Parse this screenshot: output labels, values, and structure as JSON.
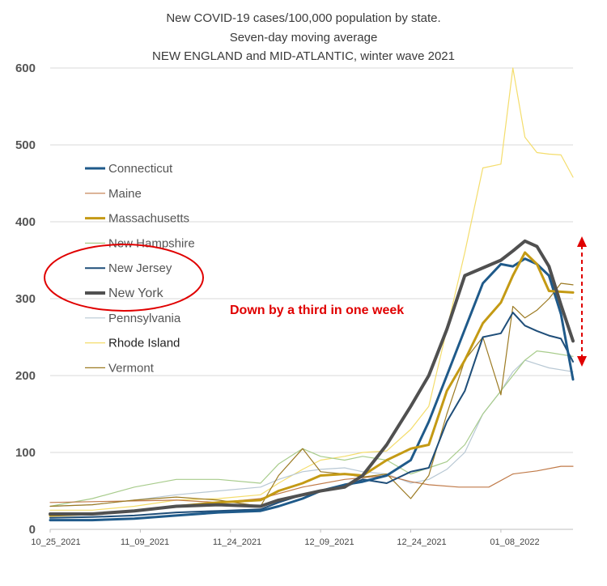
{
  "chart_data": {
    "type": "line",
    "title": [
      "New COVID-19 cases/100,000 population by state.",
      "Seven-day moving average",
      "NEW ENGLAND and MID-ATLANTIC, winter wave 2021"
    ],
    "xlabel": "",
    "ylabel": "",
    "ylim": [
      0,
      600
    ],
    "yticks": [
      0,
      100,
      200,
      300,
      400,
      500,
      600
    ],
    "x_range": [
      "2021-10-25",
      "2022-01-20"
    ],
    "xtick_labels": [
      "10_25_2021",
      "11_09_2021",
      "11_24_2021",
      "12_09_2021",
      "12_24_2021",
      "01_08_2022"
    ],
    "grid": "horizontal",
    "legend_position": "left-middle",
    "series": [
      {
        "name": "Connecticut",
        "color": "#1f5a8a",
        "points": [
          [
            "2021-10-25",
            12
          ],
          [
            "2021-11-01",
            12
          ],
          [
            "2021-11-08",
            14
          ],
          [
            "2021-11-15",
            18
          ],
          [
            "2021-11-22",
            22
          ],
          [
            "2021-11-29",
            24
          ],
          [
            "2021-12-02",
            30
          ],
          [
            "2021-12-06",
            40
          ],
          [
            "2021-12-09",
            50
          ],
          [
            "2021-12-13",
            58
          ],
          [
            "2021-12-16",
            62
          ],
          [
            "2021-12-20",
            70
          ],
          [
            "2021-12-24",
            90
          ],
          [
            "2021-12-27",
            140
          ],
          [
            "2021-12-30",
            200
          ],
          [
            "2022-01-02",
            260
          ],
          [
            "2022-01-05",
            320
          ],
          [
            "2022-01-08",
            345
          ],
          [
            "2022-01-10",
            342
          ],
          [
            "2022-01-12",
            352
          ],
          [
            "2022-01-14",
            345
          ],
          [
            "2022-01-16",
            330
          ],
          [
            "2022-01-18",
            280
          ],
          [
            "2022-01-20",
            195
          ]
        ]
      },
      {
        "name": "Maine",
        "color": "#c07a48",
        "points": [
          [
            "2021-10-25",
            35
          ],
          [
            "2021-11-01",
            36
          ],
          [
            "2021-11-08",
            37
          ],
          [
            "2021-11-15",
            38
          ],
          [
            "2021-11-22",
            35
          ],
          [
            "2021-11-29",
            40
          ],
          [
            "2021-12-06",
            55
          ],
          [
            "2021-12-13",
            65
          ],
          [
            "2021-12-20",
            70
          ],
          [
            "2021-12-24",
            62
          ],
          [
            "2021-12-27",
            58
          ],
          [
            "2022-01-01",
            55
          ],
          [
            "2022-01-06",
            55
          ],
          [
            "2022-01-10",
            72
          ],
          [
            "2022-01-14",
            76
          ],
          [
            "2022-01-18",
            82
          ],
          [
            "2022-01-20",
            82
          ]
        ]
      },
      {
        "name": "Massachusetts",
        "color": "#c49a14",
        "points": [
          [
            "2021-10-25",
            18
          ],
          [
            "2021-11-01",
            20
          ],
          [
            "2021-11-08",
            24
          ],
          [
            "2021-11-15",
            30
          ],
          [
            "2021-11-22",
            35
          ],
          [
            "2021-11-29",
            38
          ],
          [
            "2021-12-02",
            50
          ],
          [
            "2021-12-06",
            60
          ],
          [
            "2021-12-09",
            70
          ],
          [
            "2021-12-13",
            72
          ],
          [
            "2021-12-16",
            70
          ],
          [
            "2021-12-20",
            90
          ],
          [
            "2021-12-24",
            105
          ],
          [
            "2021-12-27",
            110
          ],
          [
            "2021-12-30",
            180
          ],
          [
            "2022-01-02",
            220
          ],
          [
            "2022-01-05",
            268
          ],
          [
            "2022-01-08",
            295
          ],
          [
            "2022-01-10",
            330
          ],
          [
            "2022-01-12",
            360
          ],
          [
            "2022-01-14",
            345
          ],
          [
            "2022-01-16",
            310
          ],
          [
            "2022-01-20",
            308
          ]
        ]
      },
      {
        "name": "New Hampshire",
        "color": "#a8cc8c",
        "points": [
          [
            "2021-10-25",
            30
          ],
          [
            "2021-11-01",
            40
          ],
          [
            "2021-11-08",
            55
          ],
          [
            "2021-11-15",
            65
          ],
          [
            "2021-11-22",
            65
          ],
          [
            "2021-11-29",
            60
          ],
          [
            "2021-12-02",
            85
          ],
          [
            "2021-12-06",
            105
          ],
          [
            "2021-12-09",
            95
          ],
          [
            "2021-12-13",
            90
          ],
          [
            "2021-12-16",
            95
          ],
          [
            "2021-12-20",
            90
          ],
          [
            "2021-12-24",
            72
          ],
          [
            "2021-12-27",
            80
          ],
          [
            "2021-12-30",
            88
          ],
          [
            "2022-01-02",
            110
          ],
          [
            "2022-01-05",
            150
          ],
          [
            "2022-01-08",
            180
          ],
          [
            "2022-01-10",
            200
          ],
          [
            "2022-01-12",
            220
          ],
          [
            "2022-01-14",
            232
          ],
          [
            "2022-01-16",
            230
          ],
          [
            "2022-01-20",
            225
          ]
        ]
      },
      {
        "name": "New Jersey",
        "color": "#1f4e79",
        "points": [
          [
            "2021-10-25",
            15
          ],
          [
            "2021-11-01",
            16
          ],
          [
            "2021-11-08",
            18
          ],
          [
            "2021-11-15",
            22
          ],
          [
            "2021-11-22",
            24
          ],
          [
            "2021-11-29",
            26
          ],
          [
            "2021-12-02",
            35
          ],
          [
            "2021-12-06",
            45
          ],
          [
            "2021-12-09",
            50
          ],
          [
            "2021-12-13",
            55
          ],
          [
            "2021-12-16",
            65
          ],
          [
            "2021-12-20",
            60
          ],
          [
            "2021-12-24",
            75
          ],
          [
            "2021-12-27",
            80
          ],
          [
            "2021-12-30",
            140
          ],
          [
            "2022-01-02",
            180
          ],
          [
            "2022-01-05",
            250
          ],
          [
            "2022-01-08",
            255
          ],
          [
            "2022-01-10",
            282
          ],
          [
            "2022-01-12",
            265
          ],
          [
            "2022-01-14",
            258
          ],
          [
            "2022-01-16",
            252
          ],
          [
            "2022-01-18",
            248
          ],
          [
            "2022-01-20",
            218
          ]
        ]
      },
      {
        "name": "New York",
        "color": "#505050",
        "points": [
          [
            "2021-10-25",
            20
          ],
          [
            "2021-11-01",
            20
          ],
          [
            "2021-11-08",
            24
          ],
          [
            "2021-11-15",
            30
          ],
          [
            "2021-11-22",
            32
          ],
          [
            "2021-11-29",
            30
          ],
          [
            "2021-12-02",
            38
          ],
          [
            "2021-12-06",
            45
          ],
          [
            "2021-12-09",
            50
          ],
          [
            "2021-12-13",
            55
          ],
          [
            "2021-12-16",
            70
          ],
          [
            "2021-12-20",
            110
          ],
          [
            "2021-12-24",
            160
          ],
          [
            "2021-12-27",
            200
          ],
          [
            "2021-12-30",
            260
          ],
          [
            "2022-01-02",
            330
          ],
          [
            "2022-01-05",
            340
          ],
          [
            "2022-01-08",
            350
          ],
          [
            "2022-01-10",
            362
          ],
          [
            "2022-01-12",
            375
          ],
          [
            "2022-01-14",
            368
          ],
          [
            "2022-01-16",
            342
          ],
          [
            "2022-01-18",
            292
          ],
          [
            "2022-01-20",
            245
          ]
        ]
      },
      {
        "name": "Pennsylvania",
        "color": "#b8c8d4",
        "points": [
          [
            "2021-10-25",
            30
          ],
          [
            "2021-11-01",
            32
          ],
          [
            "2021-11-08",
            38
          ],
          [
            "2021-11-15",
            45
          ],
          [
            "2021-11-22",
            50
          ],
          [
            "2021-11-29",
            55
          ],
          [
            "2021-12-02",
            65
          ],
          [
            "2021-12-06",
            75
          ],
          [
            "2021-12-09",
            78
          ],
          [
            "2021-12-13",
            80
          ],
          [
            "2021-12-16",
            75
          ],
          [
            "2021-12-20",
            72
          ],
          [
            "2021-12-24",
            60
          ],
          [
            "2021-12-27",
            65
          ],
          [
            "2021-12-30",
            78
          ],
          [
            "2022-01-02",
            100
          ],
          [
            "2022-01-05",
            150
          ],
          [
            "2022-01-08",
            180
          ],
          [
            "2022-01-10",
            205
          ],
          [
            "2022-01-12",
            220
          ],
          [
            "2022-01-14",
            215
          ],
          [
            "2022-01-16",
            210
          ],
          [
            "2022-01-20",
            205
          ]
        ]
      },
      {
        "name": "Rhode Island",
        "color": "#f4dd6c",
        "points": [
          [
            "2021-10-25",
            25
          ],
          [
            "2021-11-01",
            25
          ],
          [
            "2021-11-08",
            30
          ],
          [
            "2021-11-15",
            38
          ],
          [
            "2021-11-22",
            40
          ],
          [
            "2021-11-29",
            45
          ],
          [
            "2021-12-02",
            60
          ],
          [
            "2021-12-06",
            78
          ],
          [
            "2021-12-09",
            90
          ],
          [
            "2021-12-13",
            95
          ],
          [
            "2021-12-16",
            100
          ],
          [
            "2021-12-20",
            102
          ],
          [
            "2021-12-24",
            130
          ],
          [
            "2021-12-27",
            160
          ],
          [
            "2021-12-30",
            260
          ],
          [
            "2022-01-02",
            360
          ],
          [
            "2022-01-05",
            470
          ],
          [
            "2022-01-08",
            475
          ],
          [
            "2022-01-10",
            600
          ],
          [
            "2022-01-12",
            510
          ],
          [
            "2022-01-14",
            490
          ],
          [
            "2022-01-16",
            488
          ],
          [
            "2022-01-18",
            487
          ],
          [
            "2022-01-20",
            458
          ]
        ]
      },
      {
        "name": "Vermont",
        "color": "#9c7a22",
        "points": [
          [
            "2021-10-25",
            30
          ],
          [
            "2021-11-01",
            32
          ],
          [
            "2021-11-08",
            38
          ],
          [
            "2021-11-15",
            42
          ],
          [
            "2021-11-22",
            38
          ],
          [
            "2021-11-29",
            30
          ],
          [
            "2021-12-02",
            70
          ],
          [
            "2021-12-06",
            105
          ],
          [
            "2021-12-09",
            75
          ],
          [
            "2021-12-13",
            72
          ],
          [
            "2021-12-16",
            68
          ],
          [
            "2021-12-20",
            72
          ],
          [
            "2021-12-24",
            40
          ],
          [
            "2021-12-27",
            70
          ],
          [
            "2021-12-30",
            150
          ],
          [
            "2022-01-02",
            220
          ],
          [
            "2022-01-05",
            250
          ],
          [
            "2022-01-08",
            175
          ],
          [
            "2022-01-10",
            290
          ],
          [
            "2022-01-12",
            275
          ],
          [
            "2022-01-14",
            285
          ],
          [
            "2022-01-16",
            300
          ],
          [
            "2022-01-18",
            320
          ],
          [
            "2022-01-20",
            318
          ]
        ]
      }
    ],
    "annotations": [
      {
        "text": "Down by a third in one week",
        "color": "#e00000"
      }
    ]
  }
}
